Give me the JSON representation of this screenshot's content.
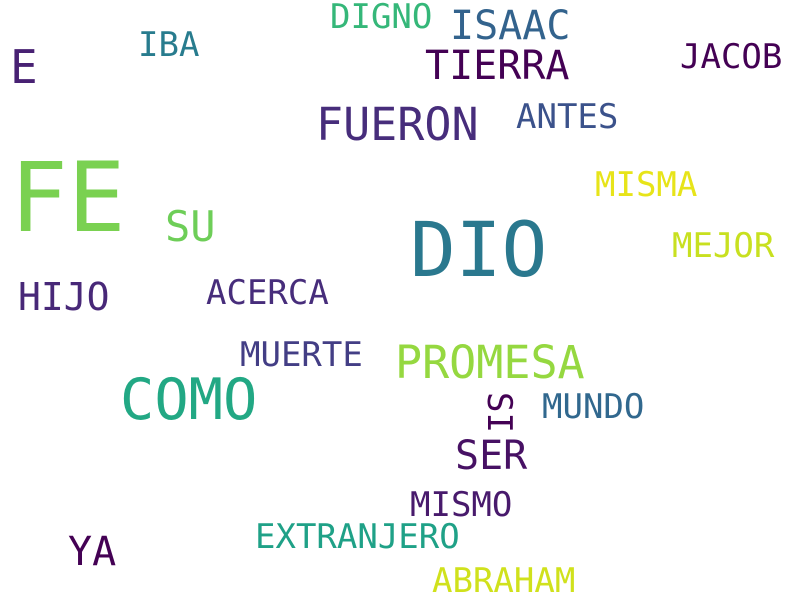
{
  "words": [
    {
      "text": "FE",
      "color": "#7ad151"
    },
    {
      "text": "DIO",
      "color": "#2a788e"
    },
    {
      "text": "COMO",
      "color": "#22a884"
    },
    {
      "text": "PROMESA",
      "color": "#95d840"
    },
    {
      "text": "FUERON",
      "color": "#472d7b"
    },
    {
      "text": "TIERRA",
      "color": "#440154"
    },
    {
      "text": "ISAAC",
      "color": "#33638d"
    },
    {
      "text": "DIGNO",
      "color": "#35b779"
    },
    {
      "text": "E",
      "color": "#482173"
    },
    {
      "text": "IBA",
      "color": "#287c8e"
    },
    {
      "text": "JACOB",
      "color": "#440154"
    },
    {
      "text": "ANTES",
      "color": "#3b528b"
    },
    {
      "text": "MISMA",
      "color": "#e7e419"
    },
    {
      "text": "SU",
      "color": "#6ece58"
    },
    {
      "text": "MEJOR",
      "color": "#c8e020"
    },
    {
      "text": "HIJO",
      "color": "#482878"
    },
    {
      "text": "ACERCA",
      "color": "#472d7b"
    },
    {
      "text": "MUERTE",
      "color": "#433e85"
    },
    {
      "text": "SI",
      "color": "#440154"
    },
    {
      "text": "MUNDO",
      "color": "#31688e"
    },
    {
      "text": "SER",
      "color": "#471164"
    },
    {
      "text": "MISMO",
      "color": "#481a6c"
    },
    {
      "text": "EXTRANJERO",
      "color": "#1fa187"
    },
    {
      "text": "YA",
      "color": "#440154"
    },
    {
      "text": "ABRAHAM",
      "color": "#d0e11c"
    }
  ]
}
